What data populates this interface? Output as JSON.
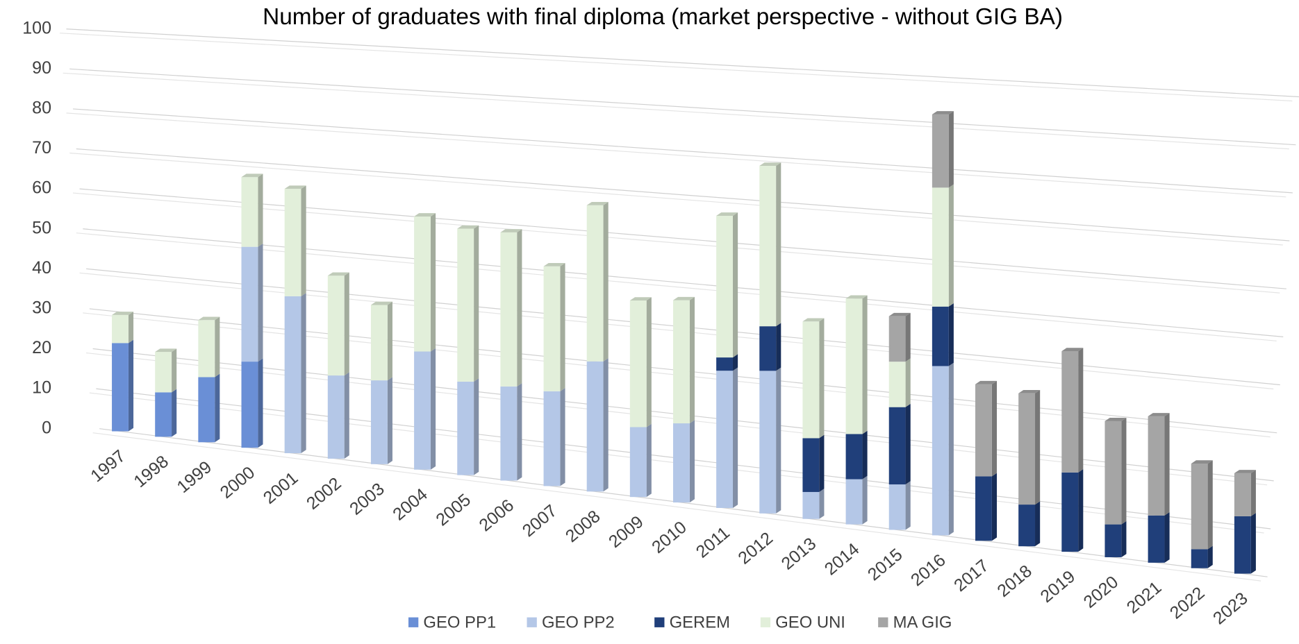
{
  "chart_data": {
    "type": "bar3d_stacked",
    "title": "Number of graduates with final diploma (market perspective - without GIG BA)",
    "categories": [
      "1997",
      "1998",
      "1999",
      "2000",
      "2001",
      "2002",
      "2003",
      "2004",
      "2005",
      "2006",
      "2007",
      "2008",
      "2009",
      "2010",
      "2011",
      "2012",
      "2013",
      "2014",
      "2015",
      "2016",
      "2017",
      "2018",
      "2019",
      "2020",
      "2021",
      "2022",
      "2023"
    ],
    "series": [
      {
        "name": "GEO PP1",
        "color": "#6a8fd6",
        "values": [
          22,
          11,
          16,
          21,
          0,
          0,
          0,
          0,
          0,
          0,
          0,
          0,
          0,
          0,
          0,
          0,
          0,
          0,
          0,
          0,
          0,
          0,
          0,
          0,
          0,
          0,
          0
        ]
      },
      {
        "name": "GEO PP2",
        "color": "#b4c7e7",
        "values": [
          0,
          0,
          0,
          28,
          38,
          20,
          20,
          28,
          22,
          22,
          22,
          30,
          16,
          18,
          31,
          32,
          6,
          10,
          10,
          37,
          0,
          0,
          0,
          0,
          0,
          0,
          0
        ]
      },
      {
        "name": "GEREM",
        "color": "#203f7a",
        "values": [
          0,
          0,
          0,
          0,
          0,
          0,
          0,
          0,
          0,
          0,
          0,
          0,
          0,
          0,
          3,
          10,
          12,
          10,
          17,
          13,
          14,
          9,
          17,
          7,
          10,
          4,
          12
        ]
      },
      {
        "name": "GEO UNI",
        "color": "#e2efda",
        "values": [
          7,
          10,
          14,
          17,
          26,
          24,
          18,
          32,
          36,
          36,
          29,
          36,
          29,
          28,
          32,
          36,
          26,
          30,
          10,
          26,
          0,
          0,
          0,
          0,
          0,
          0,
          0
        ]
      },
      {
        "name": "MA GIG",
        "color": "#a5a5a5",
        "values": [
          0,
          0,
          0,
          0,
          0,
          0,
          0,
          0,
          0,
          0,
          0,
          0,
          0,
          0,
          0,
          0,
          0,
          0,
          10,
          16,
          20,
          24,
          26,
          22,
          21,
          18,
          9
        ]
      }
    ],
    "ylim": [
      0,
      100
    ],
    "yticks": [
      0,
      10,
      20,
      30,
      40,
      50,
      60,
      70,
      80,
      90,
      100
    ],
    "grid": true,
    "legend": "bottom"
  }
}
